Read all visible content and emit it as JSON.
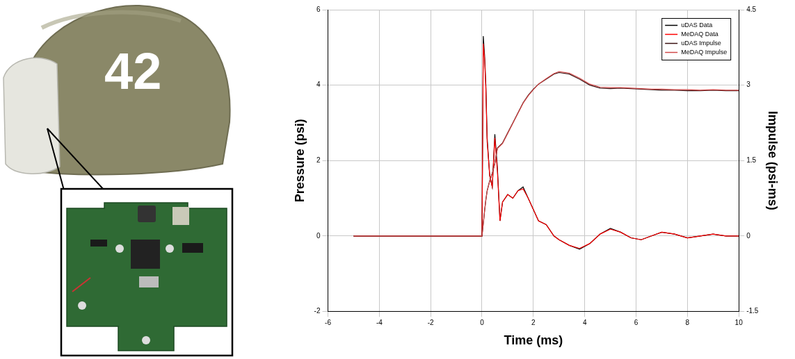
{
  "chart_data": {
    "type": "line",
    "x_label": "Time (ms)",
    "y_label": "Pressure (psi)",
    "y2_label": "Impulse (psi-ms)",
    "x": [
      -5,
      -2,
      0,
      0.05,
      0.1,
      0.15,
      0.2,
      0.3,
      0.4,
      0.5,
      0.6,
      0.7,
      0.8,
      1.0,
      1.2,
      1.4,
      1.6,
      1.8,
      2.0,
      2.2,
      2.5,
      2.8,
      3.0,
      3.4,
      3.8,
      4.2,
      4.6,
      5.0,
      5.4,
      5.8,
      6.2,
      6.6,
      7.0,
      7.5,
      8.0,
      8.5,
      9.0,
      9.5,
      10.0
    ],
    "series": [
      {
        "name": "uDAS Data",
        "color": "#000000",
        "line_style": "solid",
        "values": [
          0,
          0,
          0,
          5.3,
          4.8,
          4.0,
          2.6,
          1.6,
          1.3,
          2.7,
          1.8,
          0.4,
          0.9,
          1.1,
          1.0,
          1.2,
          1.3,
          1.0,
          0.7,
          0.4,
          0.3,
          0.0,
          -0.1,
          -0.25,
          -0.35,
          -0.2,
          0.05,
          0.2,
          0.1,
          -0.05,
          -0.1,
          0.0,
          0.1,
          0.05,
          -0.05,
          0.0,
          0.05,
          0.0,
          0.0
        ]
      },
      {
        "name": "MeDAQ Data",
        "color": "#ff0000",
        "line_style": "solid",
        "values": [
          0,
          0,
          0,
          5.1,
          4.7,
          3.9,
          2.5,
          1.6,
          1.3,
          2.6,
          1.7,
          0.4,
          0.9,
          1.1,
          1.0,
          1.2,
          1.25,
          1.0,
          0.7,
          0.4,
          0.3,
          0.0,
          -0.1,
          -0.25,
          -0.33,
          -0.2,
          0.05,
          0.18,
          0.1,
          -0.05,
          -0.1,
          0.0,
          0.1,
          0.05,
          -0.05,
          0.0,
          0.05,
          0.0,
          0.0
        ]
      },
      {
        "name": "uDAS Impulse",
        "color": "#3a1010",
        "line_style": "solid",
        "axis": "y2",
        "values": [
          0,
          0,
          0,
          0.25,
          0.5,
          0.72,
          0.9,
          1.1,
          1.25,
          1.45,
          1.75,
          1.8,
          1.85,
          2.05,
          2.25,
          2.45,
          2.65,
          2.8,
          2.92,
          3.02,
          3.12,
          3.22,
          3.25,
          3.22,
          3.12,
          3.0,
          2.94,
          2.93,
          2.94,
          2.93,
          2.92,
          2.91,
          2.9,
          2.9,
          2.89,
          2.89,
          2.9,
          2.89,
          2.89
        ]
      },
      {
        "name": "MeDAQ Impulse",
        "color": "#d04848",
        "line_style": "solid",
        "axis": "y2",
        "values": [
          0,
          0,
          0,
          0.24,
          0.49,
          0.71,
          0.89,
          1.09,
          1.24,
          1.44,
          1.74,
          1.79,
          1.84,
          2.04,
          2.24,
          2.44,
          2.64,
          2.79,
          2.91,
          3.02,
          3.13,
          3.23,
          3.27,
          3.24,
          3.14,
          3.02,
          2.96,
          2.95,
          2.95,
          2.94,
          2.93,
          2.92,
          2.92,
          2.91,
          2.91,
          2.9,
          2.91,
          2.9,
          2.9
        ]
      }
    ],
    "xlim": [
      -6,
      10
    ],
    "xticks": [
      -6,
      -4,
      -2,
      0,
      2,
      4,
      6,
      8,
      10
    ],
    "ylim": [
      -2,
      6
    ],
    "yticks": [
      -2,
      0,
      2,
      4,
      6
    ],
    "y2lim": [
      -1.5,
      4.5
    ],
    "y2ticks": [
      -1.5,
      0,
      1.5,
      3,
      4.5
    ],
    "grid": true,
    "legend": "upper right"
  },
  "photo": {
    "helmet_label": "42"
  }
}
